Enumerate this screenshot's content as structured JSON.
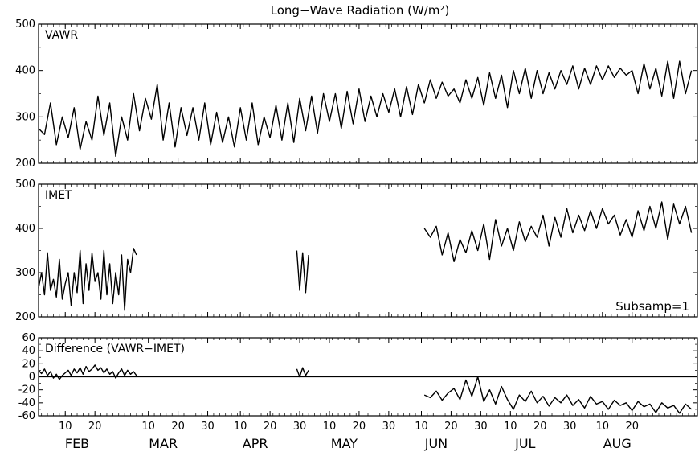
{
  "chart_data": [
    {
      "type": "line",
      "panel": "top",
      "label": "VAWR",
      "ylim": [
        200,
        500
      ],
      "yticks": [
        "500",
        "400",
        "300",
        "200"
      ],
      "series": [
        {
          "name": "VAWR",
          "x": [
            1,
            3,
            5,
            7,
            9,
            11,
            13,
            15,
            17,
            19,
            21,
            23,
            25,
            27,
            29,
            31,
            33,
            35,
            37,
            39,
            41,
            43,
            45,
            47,
            49,
            51,
            53,
            55,
            57,
            59,
            61,
            63,
            65,
            67,
            69,
            71,
            73,
            75,
            77,
            79,
            81,
            83,
            85,
            87,
            89,
            91,
            93,
            95,
            97,
            99,
            101,
            103,
            105,
            107,
            109,
            111,
            113,
            115,
            117,
            119,
            121,
            123,
            125,
            127,
            129,
            131,
            133,
            135,
            137,
            139,
            141,
            143,
            145,
            147,
            149,
            151,
            153,
            155,
            157,
            159,
            161,
            163,
            165,
            167,
            169,
            171,
            173,
            175,
            177,
            179,
            181,
            183,
            185,
            187,
            189,
            191,
            193,
            195,
            197,
            199,
            201,
            203,
            205,
            207,
            209,
            211,
            213,
            215,
            217,
            219,
            221
          ],
          "values": [
            275,
            262,
            330,
            240,
            300,
            255,
            320,
            230,
            290,
            250,
            345,
            260,
            330,
            215,
            300,
            250,
            350,
            270,
            340,
            295,
            370,
            250,
            330,
            235,
            320,
            260,
            320,
            250,
            330,
            240,
            310,
            245,
            300,
            235,
            320,
            250,
            330,
            240,
            300,
            255,
            325,
            250,
            330,
            245,
            340,
            270,
            345,
            265,
            350,
            290,
            350,
            275,
            355,
            285,
            360,
            290,
            345,
            300,
            350,
            310,
            360,
            300,
            365,
            305,
            370,
            330,
            380,
            340,
            375,
            345,
            360,
            330,
            380,
            340,
            385,
            325,
            395,
            340,
            390,
            320,
            400,
            350,
            405,
            340,
            400,
            350,
            395,
            360,
            400,
            370,
            410,
            360,
            405,
            370,
            410,
            380,
            410,
            385,
            405,
            390,
            400,
            350,
            415,
            360,
            405,
            345,
            420,
            340,
            420,
            350,
            400
          ]
        }
      ]
    },
    {
      "type": "line",
      "panel": "middle",
      "label": "IMET",
      "ylim": [
        200,
        500
      ],
      "yticks": [
        "500",
        "400",
        "300",
        "200"
      ],
      "annotation": "Subsamp=1",
      "series": [
        {
          "name": "IMET",
          "segments": [
            {
              "x": [
                1,
                2,
                3,
                4,
                5,
                6,
                7,
                8,
                9,
                10,
                11,
                12,
                13,
                14,
                15,
                16,
                17,
                18,
                19,
                20,
                21,
                22,
                23,
                24,
                25,
                26,
                27,
                28,
                29,
                30,
                31,
                32,
                33,
                34
              ],
              "values": [
                265,
                300,
                250,
                345,
                260,
                285,
                245,
                330,
                240,
                275,
                300,
                225,
                300,
                255,
                350,
                230,
                320,
                260,
                345,
                280,
                300,
                240,
                350,
                250,
                320,
                230,
                300,
                250,
                340,
                215,
                330,
                300,
                355,
                340
              ]
            },
            {
              "x": [
                88,
                89,
                90,
                91,
                92
              ],
              "values": [
                350,
                260,
                345,
                255,
                340
              ]
            },
            {
              "x": [
                131,
                133,
                135,
                137,
                139,
                141,
                143,
                145,
                147,
                149,
                151,
                153,
                155,
                157,
                159,
                161,
                163,
                165,
                167,
                169,
                171,
                173,
                175,
                177,
                179,
                181,
                183,
                185,
                187,
                189,
                191,
                193,
                195,
                197,
                199,
                201,
                203,
                205,
                207,
                209,
                211,
                213,
                215,
                217,
                219,
                221
              ],
              "values": [
                400,
                380,
                405,
                340,
                390,
                325,
                375,
                345,
                395,
                350,
                410,
                330,
                420,
                360,
                400,
                350,
                415,
                370,
                405,
                380,
                430,
                360,
                425,
                380,
                445,
                390,
                430,
                395,
                440,
                400,
                445,
                410,
                430,
                385,
                420,
                380,
                440,
                395,
                450,
                400,
                460,
                375,
                455,
                410,
                450,
                390
              ]
            }
          ]
        }
      ]
    },
    {
      "type": "line",
      "panel": "bottom",
      "label": "Difference (VAWR−IMET)",
      "ylim": [
        -60,
        60
      ],
      "yticks": [
        "60",
        "40",
        "20",
        "0",
        "-20",
        "-40",
        "-60"
      ],
      "series": [
        {
          "name": "Difference (VAWR−IMET)",
          "segments": [
            {
              "x": [
                1,
                2,
                3,
                4,
                5,
                6,
                7,
                8,
                9,
                10,
                11,
                12,
                13,
                14,
                15,
                16,
                17,
                18,
                19,
                20,
                21,
                22,
                23,
                24,
                25,
                26,
                27,
                28,
                29,
                30,
                31,
                32,
                33,
                34
              ],
              "values": [
                10,
                5,
                12,
                2,
                8,
                -2,
                4,
                -4,
                2,
                6,
                10,
                2,
                12,
                6,
                14,
                4,
                16,
                8,
                12,
                18,
                10,
                14,
                6,
                12,
                4,
                8,
                -2,
                6,
                12,
                2,
                10,
                4,
                8,
                2
              ]
            },
            {
              "x": [
                88,
                89,
                90,
                91,
                92
              ],
              "values": [
                12,
                0,
                14,
                2,
                10
              ]
            },
            {
              "x": [
                131,
                133,
                135,
                137,
                139,
                141,
                143,
                145,
                147,
                149,
                151,
                153,
                155,
                157,
                159,
                161,
                163,
                165,
                167,
                169,
                171,
                173,
                175,
                177,
                179,
                181,
                183,
                185,
                187,
                189,
                191,
                193,
                195,
                197,
                199,
                201,
                203,
                205,
                207,
                209,
                211,
                213,
                215,
                217,
                219,
                221
              ],
              "values": [
                -28,
                -32,
                -22,
                -36,
                -25,
                -18,
                -35,
                -5,
                -30,
                0,
                -38,
                -20,
                -42,
                -15,
                -35,
                -50,
                -28,
                -38,
                -22,
                -40,
                -30,
                -45,
                -32,
                -40,
                -28,
                -44,
                -35,
                -48,
                -30,
                -42,
                -38,
                -50,
                -36,
                -44,
                -40,
                -52,
                -38,
                -46,
                -42,
                -55,
                -40,
                -48,
                -44,
                -56,
                -42,
                -50
              ]
            }
          ]
        }
      ]
    }
  ],
  "title": "Long−Wave Radiation (W/m²)",
  "x_axis": {
    "day_ticks": [
      {
        "x": 10,
        "label": "10"
      },
      {
        "x": 20,
        "label": "20"
      },
      {
        "x": 38,
        "label": "10"
      },
      {
        "x": 48,
        "label": "20"
      },
      {
        "x": 58,
        "label": "30"
      },
      {
        "x": 69,
        "label": "10"
      },
      {
        "x": 79,
        "label": "20"
      },
      {
        "x": 89,
        "label": "30"
      },
      {
        "x": 99,
        "label": "10"
      },
      {
        "x": 109,
        "label": "20"
      },
      {
        "x": 119,
        "label": "30"
      },
      {
        "x": 130,
        "label": "10"
      },
      {
        "x": 140,
        "label": "20"
      },
      {
        "x": 150,
        "label": "30"
      },
      {
        "x": 160,
        "label": "10"
      },
      {
        "x": 170,
        "label": "20"
      },
      {
        "x": 180,
        "label": "30"
      },
      {
        "x": 191,
        "label": "10"
      },
      {
        "x": 201,
        "label": "20"
      }
    ],
    "months": [
      {
        "x": 14,
        "label": "FEB"
      },
      {
        "x": 43,
        "label": "MAR"
      },
      {
        "x": 74,
        "label": "APR"
      },
      {
        "x": 104,
        "label": "MAY"
      },
      {
        "x": 135,
        "label": "JUN"
      },
      {
        "x": 165,
        "label": "JUL"
      },
      {
        "x": 196,
        "label": "AUG"
      }
    ],
    "range": [
      1,
      223
    ]
  }
}
